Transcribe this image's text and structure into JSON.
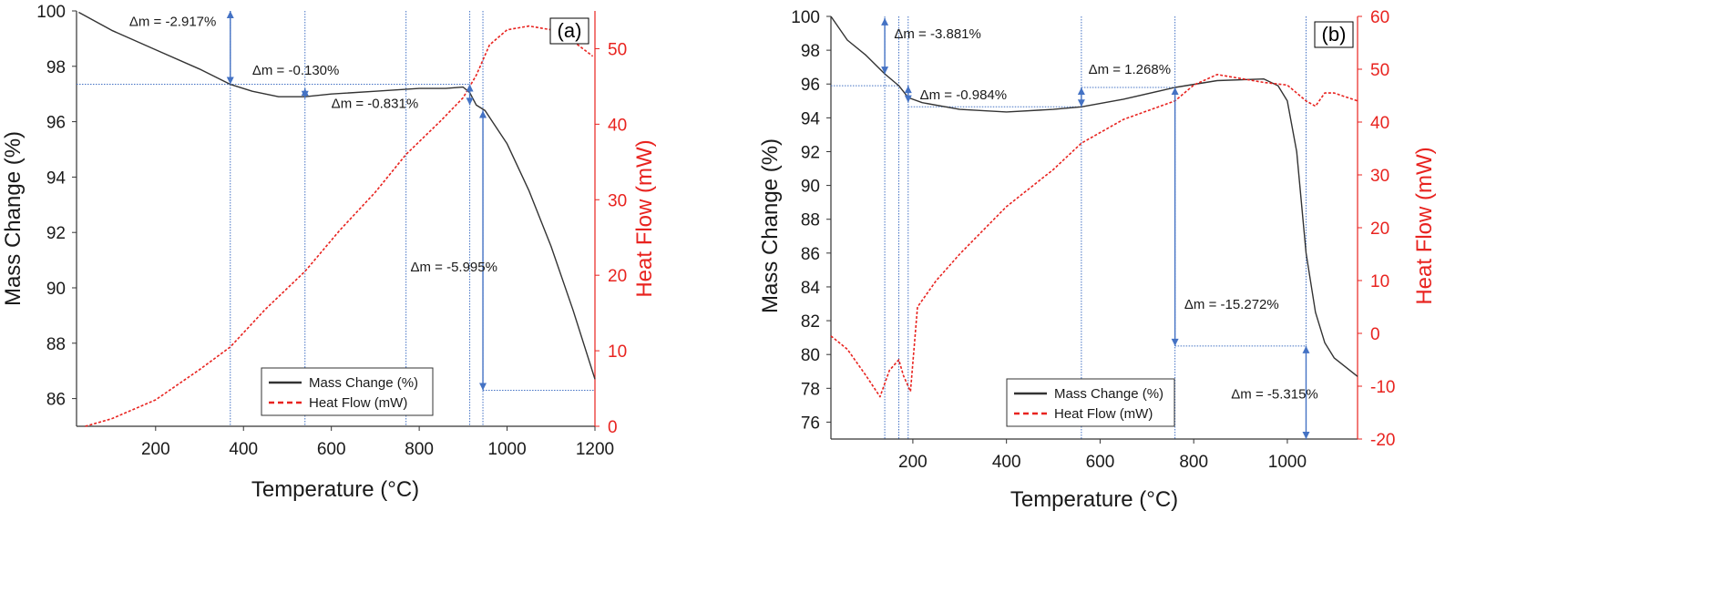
{
  "chart_data": [
    {
      "type": "line",
      "panel_label": "(a)",
      "xlabel": "Temperature (°C)",
      "ylabel": "Mass Change (%)",
      "y2label": "Heat Flow (mW)",
      "xlim": [
        20,
        1200
      ],
      "ylim": [
        85,
        100
      ],
      "y2lim": [
        0,
        55
      ],
      "xticks": [
        200,
        400,
        600,
        800,
        1000,
        1200
      ],
      "yticks": [
        86,
        88,
        90,
        92,
        94,
        96,
        98,
        100
      ],
      "y2ticks": [
        0,
        10,
        20,
        30,
        40,
        50
      ],
      "legend": {
        "placement": "bottom-right",
        "entries": [
          "Mass Change (%)",
          "Heat Flow (mW)"
        ]
      },
      "series": [
        {
          "name": "Mass Change (%)",
          "axis": "left",
          "color": "#333333",
          "dash": "solid",
          "x": [
            25,
            100,
            200,
            300,
            370,
            420,
            480,
            540,
            600,
            700,
            800,
            860,
            900,
            915,
            930,
            950,
            1000,
            1050,
            1100,
            1150,
            1200
          ],
          "y": [
            99.95,
            99.3,
            98.6,
            97.9,
            97.35,
            97.1,
            96.9,
            96.9,
            97.0,
            97.1,
            97.2,
            97.2,
            97.25,
            97.05,
            96.6,
            96.4,
            95.2,
            93.5,
            91.5,
            89.2,
            86.7
          ]
        },
        {
          "name": "Heat Flow (mW)",
          "axis": "right",
          "color": "#e8231f",
          "dash": "dashed",
          "x": [
            40,
            100,
            200,
            300,
            370,
            450,
            540,
            620,
            700,
            770,
            850,
            900,
            930,
            960,
            1000,
            1050,
            1100,
            1150,
            1195
          ],
          "y": [
            0,
            1,
            3.5,
            7.5,
            10.5,
            15.5,
            20.5,
            26,
            31,
            36,
            40.5,
            43.5,
            46.5,
            50.5,
            52.5,
            53,
            52.5,
            51,
            49
          ]
        }
      ],
      "markers": {
        "vertical_lines_x": [
          370,
          540,
          770,
          915,
          945
        ],
        "horizontal_lines": [
          {
            "y": 97.35,
            "x": [
              20,
              915
            ]
          },
          {
            "y": 86.3,
            "x": [
              945,
              1200
            ]
          }
        ],
        "arrows": [
          {
            "x": 370,
            "y": [
              100,
              97.35
            ]
          },
          {
            "x": 540,
            "y": [
              97.2,
              96.85
            ]
          },
          {
            "x": 915,
            "y": [
              97.35,
              96.6
            ]
          },
          {
            "x": 945,
            "y": [
              96.4,
              86.3
            ]
          }
        ]
      },
      "annotations": [
        {
          "text": "Δm = -2.917%",
          "x": 140,
          "y": 99.45
        },
        {
          "text": "Δm = -0.130%",
          "x": 420,
          "y": 97.7
        },
        {
          "text": "Δm = -0.831%",
          "x": 600,
          "y": 96.5
        },
        {
          "text": "Δm = -5.995%",
          "x": 780,
          "y": 90.6
        }
      ]
    },
    {
      "type": "line",
      "panel_label": "(b)",
      "xlabel": "Temperature (°C)",
      "ylabel": "Mass Change (%)",
      "y2label": "Heat Flow (mW)",
      "xlim": [
        25,
        1150
      ],
      "ylim": [
        75,
        100
      ],
      "y2lim": [
        -20,
        60
      ],
      "xticks": [
        200,
        400,
        600,
        800,
        1000
      ],
      "yticks": [
        76,
        78,
        80,
        82,
        84,
        86,
        88,
        90,
        92,
        94,
        96,
        98,
        100
      ],
      "y2ticks": [
        -20,
        -10,
        0,
        10,
        20,
        30,
        40,
        50,
        60
      ],
      "legend": {
        "placement": "bottom-center",
        "entries": [
          "Mass Change (%)",
          "Heat Flow (mW)"
        ]
      },
      "series": [
        {
          "name": "Mass Change (%)",
          "axis": "left",
          "color": "#333333",
          "dash": "solid",
          "x": [
            25,
            60,
            100,
            140,
            170,
            190,
            220,
            300,
            400,
            500,
            560,
            650,
            760,
            850,
            950,
            980,
            1000,
            1020,
            1040,
            1060,
            1080,
            1100,
            1150
          ],
          "y": [
            100,
            98.6,
            97.7,
            96.6,
            95.9,
            95.2,
            94.9,
            94.5,
            94.35,
            94.5,
            94.65,
            95.1,
            95.8,
            96.2,
            96.3,
            95.9,
            95.0,
            92.0,
            86.0,
            82.5,
            80.7,
            79.8,
            78.7
          ]
        },
        {
          "name": "Heat Flow (mW)",
          "axis": "right",
          "color": "#e8231f",
          "dash": "dashed",
          "x": [
            25,
            60,
            100,
            130,
            150,
            170,
            180,
            195,
            210,
            250,
            300,
            400,
            500,
            560,
            650,
            760,
            800,
            850,
            950,
            1000,
            1040,
            1060,
            1080,
            1100,
            1150
          ],
          "y": [
            -0.5,
            -3,
            -8,
            -12,
            -7,
            -5,
            -8,
            -11,
            5,
            10,
            15,
            24,
            31,
            36,
            40.5,
            44,
            47,
            49,
            47.5,
            47,
            44,
            43,
            45.5,
            45.5,
            44
          ]
        }
      ],
      "markers": {
        "vertical_lines_x": [
          140,
          170,
          190,
          560,
          760,
          1040
        ],
        "horizontal_lines": [
          {
            "y": 95.9,
            "x": [
              25,
              170
            ]
          },
          {
            "y": 94.65,
            "x": [
              190,
              560
            ]
          },
          {
            "y": 95.8,
            "x": [
              560,
              760
            ]
          },
          {
            "y": 80.5,
            "x": [
              760,
              1040
            ]
          }
        ],
        "arrows": [
          {
            "x": 140,
            "y": [
              99.9,
              96.6
            ]
          },
          {
            "x": 190,
            "y": [
              95.9,
              94.9
            ]
          },
          {
            "x": 560,
            "y": [
              95.8,
              94.65
            ]
          },
          {
            "x": 760,
            "y": [
              95.8,
              80.5
            ]
          },
          {
            "x": 1040,
            "y": [
              80.5,
              75
            ]
          }
        ]
      },
      "annotations": [
        {
          "text": "Δm = -3.881%",
          "x": 160,
          "y": 98.7
        },
        {
          "text": "Δm = -0.984%",
          "x": 215,
          "y": 95.1
        },
        {
          "text": "Δm = 1.268%",
          "x": 575,
          "y": 96.6
        },
        {
          "text": "Δm = -15.272%",
          "x": 780,
          "y": 82.7
        },
        {
          "text": "Δm = -5.315%",
          "x": 880,
          "y": 77.4
        }
      ]
    }
  ]
}
